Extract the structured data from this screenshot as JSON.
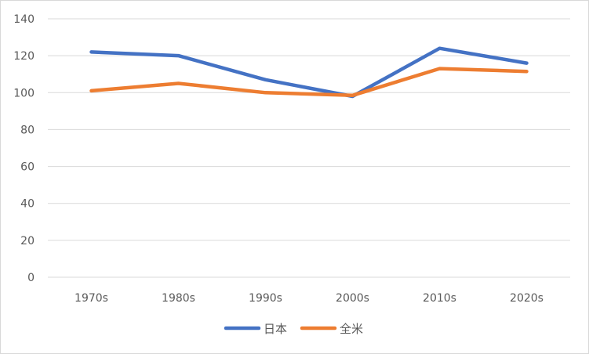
{
  "chart_data": {
    "type": "line",
    "title": "",
    "xlabel": "",
    "ylabel": "",
    "categories": [
      "1970s",
      "1980s",
      "1990s",
      "2000s",
      "2010s",
      "2020s"
    ],
    "ylim": [
      0,
      140
    ],
    "yticks": [
      0,
      20,
      40,
      60,
      80,
      100,
      120,
      140
    ],
    "grid": true,
    "legend_position": "bottom",
    "series": [
      {
        "name": "日本",
        "color": "#4472C4",
        "values": [
          122,
          120,
          107,
          98,
          124,
          116
        ]
      },
      {
        "name": "全米",
        "color": "#ED7D31",
        "values": [
          101,
          105,
          100,
          98.5,
          113,
          111.5
        ]
      }
    ]
  }
}
